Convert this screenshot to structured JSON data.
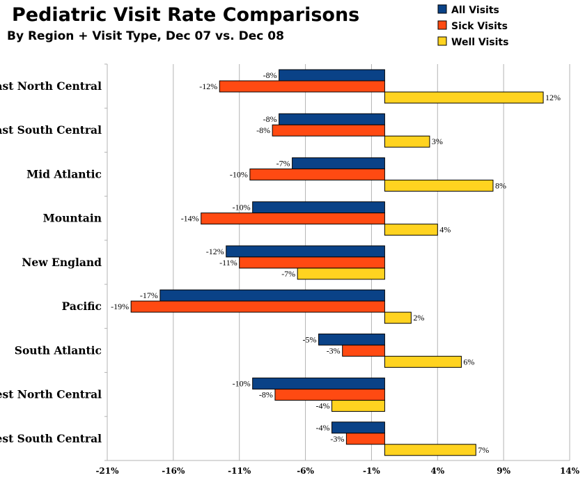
{
  "chart_data": {
    "type": "bar",
    "orientation": "horizontal",
    "title": "Pediatric Visit Rate Comparisons",
    "subtitle": "By Region + Visit Type, Dec 07 vs. Dec 08",
    "categories": [
      "East North Central",
      "East South Central",
      "Mid Atlantic",
      "Mountain",
      "New England",
      "Pacific",
      "South Atlantic",
      "West North Central",
      "West South Central"
    ],
    "series": [
      {
        "name": "All Visits",
        "color": "#0a4287",
        "values": [
          -8,
          -8,
          -7,
          -10,
          -12,
          -17,
          -5,
          -10,
          -4
        ],
        "labels": [
          "-8%",
          "-8%",
          "-7%",
          "-10%",
          "-12%",
          "-17%",
          "-5%",
          "-10%",
          "-4%"
        ]
      },
      {
        "name": "Sick Visits",
        "color": "#ff4a12",
        "values": [
          -12.5,
          -8.5,
          -10.2,
          -13.9,
          -11,
          -19.2,
          -3.2,
          -8.3,
          -2.9
        ],
        "labels": [
          "-12%",
          "-8%",
          "-10%",
          "-14%",
          "-11%",
          "-19%",
          "-3%",
          "-8%",
          "-3%"
        ]
      },
      {
        "name": "Well Visits",
        "color": "#ffd320",
        "values": [
          12,
          3.4,
          8.2,
          4,
          -6.6,
          2,
          5.8,
          -4,
          6.9
        ],
        "labels": [
          "12%",
          "3%",
          "8%",
          "4%",
          "-7%",
          "2%",
          "6%",
          "-4%",
          "7%"
        ]
      }
    ],
    "xlim": [
      -21,
      14
    ],
    "xticks": [
      -21,
      -16,
      -11,
      -6,
      -1,
      4,
      9,
      14
    ],
    "xtick_labels": [
      "-21%",
      "-16%",
      "-11%",
      "-6%",
      "-1%",
      "4%",
      "9%",
      "14%"
    ],
    "baseline": 0,
    "grid": "vertical",
    "legend_position": "top-right"
  }
}
